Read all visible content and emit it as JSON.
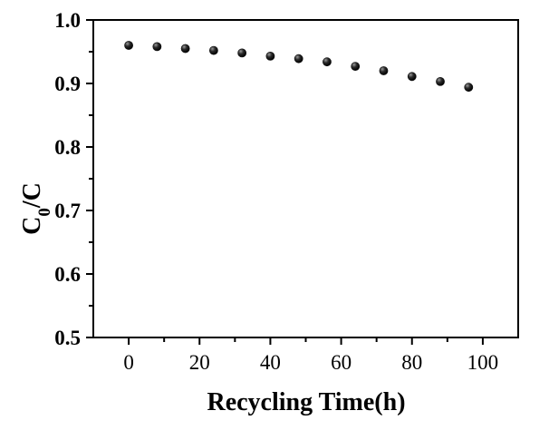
{
  "chart_data": {
    "type": "scatter",
    "title": "",
    "xlabel": "Recycling Time(h)",
    "ylabel_main": "C",
    "ylabel_sub": "0",
    "ylabel_tail": "/C",
    "xlim": [
      -10,
      110
    ],
    "ylim": [
      0.5,
      1.0
    ],
    "x_ticks": [
      0,
      20,
      40,
      60,
      80,
      100
    ],
    "x_tick_labels": [
      "0",
      "20",
      "40",
      "60",
      "80",
      "100"
    ],
    "y_ticks": [
      0.5,
      0.6,
      0.7,
      0.8,
      0.9,
      1.0
    ],
    "y_tick_labels": [
      "0.5",
      "0.6",
      "0.7",
      "0.8",
      "0.9",
      "1.0"
    ],
    "grid": false,
    "legend": "none",
    "series": [
      {
        "x": [
          0,
          8,
          16,
          24,
          32,
          40,
          48,
          56,
          64,
          72,
          80,
          88,
          96
        ],
        "y": [
          0.96,
          0.958,
          0.955,
          0.952,
          0.948,
          0.943,
          0.939,
          0.934,
          0.927,
          0.92,
          0.911,
          0.903,
          0.894
        ],
        "marker_color": "#111111"
      }
    ]
  }
}
